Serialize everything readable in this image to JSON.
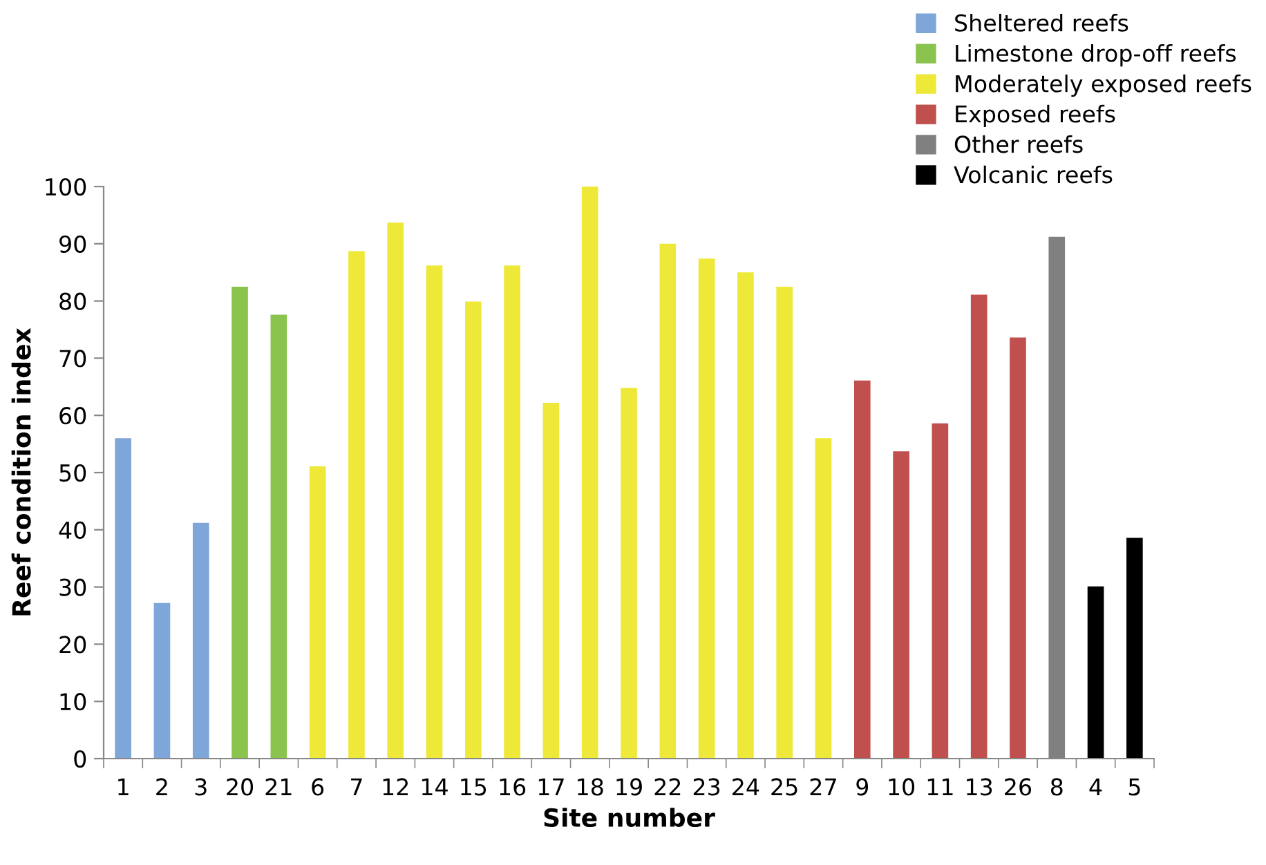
{
  "chart_data": {
    "type": "bar",
    "xlabel": "Site number",
    "ylabel": "Reef condition index",
    "categories": [
      "1",
      "2",
      "3",
      "20",
      "21",
      "6",
      "7",
      "12",
      "14",
      "15",
      "16",
      "17",
      "18",
      "19",
      "22",
      "23",
      "24",
      "25",
      "27",
      "9",
      "10",
      "11",
      "13",
      "26",
      "8",
      "4",
      "5"
    ],
    "series": [
      {
        "name": "Sheltered reefs",
        "color": "#7ea6d8",
        "values": [
          56.0,
          27.2,
          41.2,
          null,
          null,
          null,
          null,
          null,
          null,
          null,
          null,
          null,
          null,
          null,
          null,
          null,
          null,
          null,
          null,
          null,
          null,
          null,
          null,
          null,
          null,
          null,
          null
        ]
      },
      {
        "name": "Limestone drop-off reefs",
        "color": "#8bc34f",
        "values": [
          null,
          null,
          null,
          82.5,
          77.6,
          null,
          null,
          null,
          null,
          null,
          null,
          null,
          null,
          null,
          null,
          null,
          null,
          null,
          null,
          null,
          null,
          null,
          null,
          null,
          null,
          null,
          null
        ]
      },
      {
        "name": "Moderately exposed reefs",
        "color": "#eee838",
        "values": [
          null,
          null,
          null,
          null,
          null,
          51.1,
          88.7,
          93.7,
          86.2,
          79.9,
          86.2,
          62.2,
          100,
          64.8,
          90.0,
          87.4,
          85.0,
          82.5,
          56.0,
          null,
          null,
          null,
          null,
          null,
          null,
          null,
          null
        ]
      },
      {
        "name": "Exposed reefs",
        "color": "#c0504d",
        "values": [
          null,
          null,
          null,
          null,
          null,
          null,
          null,
          null,
          null,
          null,
          null,
          null,
          null,
          null,
          null,
          null,
          null,
          null,
          null,
          66.1,
          53.7,
          58.6,
          81.1,
          73.6,
          null,
          null,
          null
        ]
      },
      {
        "name": "Other reefs",
        "color": "#808080",
        "values": [
          null,
          null,
          null,
          null,
          null,
          null,
          null,
          null,
          null,
          null,
          null,
          null,
          null,
          null,
          null,
          null,
          null,
          null,
          null,
          null,
          null,
          null,
          null,
          null,
          91.2,
          null,
          null
        ]
      },
      {
        "name": "Volcanic reefs",
        "color": "#000000",
        "values": [
          null,
          null,
          null,
          null,
          null,
          null,
          null,
          null,
          null,
          null,
          null,
          null,
          null,
          null,
          null,
          null,
          null,
          null,
          null,
          null,
          null,
          null,
          null,
          null,
          null,
          30.1,
          38.6
        ]
      }
    ],
    "ylim": [
      0,
      100
    ],
    "yticks": [
      0,
      10,
      20,
      30,
      40,
      50,
      60,
      70,
      80,
      90,
      100
    ],
    "grid": false,
    "legend": "top right"
  }
}
